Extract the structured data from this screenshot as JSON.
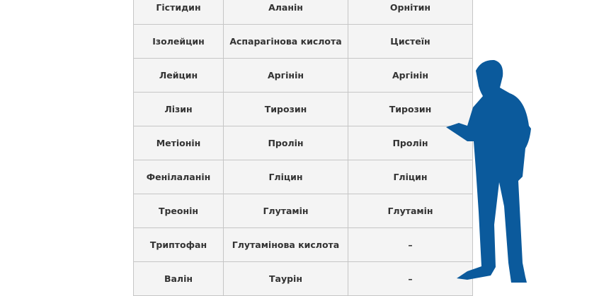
{
  "table": {
    "rows": [
      [
        "Гістидин",
        "Аланін",
        "Орнітин"
      ],
      [
        "Ізолейцин",
        "Аспарагінова кислота",
        "Цистеїн"
      ],
      [
        "Лейцин",
        "Аргінін",
        "Аргінін"
      ],
      [
        "Лізин",
        "Тирозин",
        "Тирозин"
      ],
      [
        "Метіонін",
        "Пролін",
        "Пролін"
      ],
      [
        "Фенілаланін",
        "Гліцин",
        "Гліцин"
      ],
      [
        "Треонін",
        "Глутамін",
        "Глутамін"
      ],
      [
        "Триптофан",
        "Глутамінова кислота",
        "–"
      ],
      [
        "Валін",
        "Таурін",
        "–"
      ]
    ]
  },
  "illustration": {
    "icon": "person-silhouette-icon",
    "color": "#0b5a9c"
  }
}
